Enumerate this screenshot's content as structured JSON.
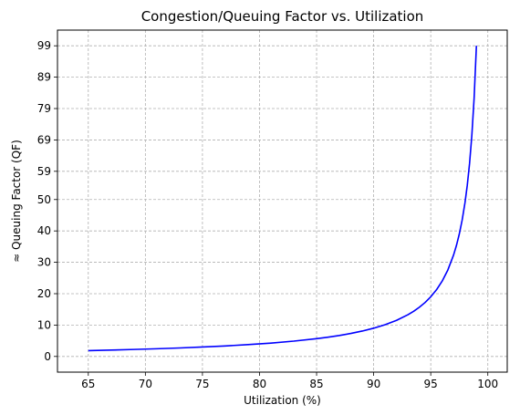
{
  "chart_data": {
    "type": "line",
    "title": "Congestion/Queuing Factor vs. Utilization",
    "xlabel": "Utilization (%)",
    "ylabel": "≈ Queuing Factor (QF)",
    "xlim": [
      62.3,
      101.7
    ],
    "ylim": [
      -5,
      104
    ],
    "xticks": [
      65,
      70,
      75,
      80,
      85,
      90,
      95,
      100
    ],
    "yticks": [
      0,
      10,
      20,
      30,
      40,
      50,
      59,
      69,
      79,
      89,
      99
    ],
    "grid": true,
    "series": [
      {
        "color": "#0000ff",
        "x": [
          65,
          67,
          69,
          71,
          73,
          75,
          77,
          79,
          81,
          83,
          85,
          86,
          87,
          88,
          89,
          90,
          91,
          92,
          93,
          93.5,
          94,
          94.5,
          95,
          95.5,
          96,
          96.5,
          97,
          97.25,
          97.5,
          97.75,
          98,
          98.2,
          98.4,
          98.6,
          98.8,
          99
        ],
        "y": [
          1.86,
          2.03,
          2.23,
          2.45,
          2.7,
          3.0,
          3.35,
          3.76,
          4.26,
          4.88,
          5.67,
          6.14,
          6.69,
          7.33,
          8.09,
          9.0,
          10.11,
          11.5,
          13.29,
          14.38,
          15.67,
          17.18,
          19.0,
          21.22,
          24.0,
          27.57,
          32.33,
          35.36,
          39.0,
          43.44,
          49.0,
          54.56,
          61.5,
          70.43,
          82.33,
          99.0
        ]
      }
    ]
  }
}
